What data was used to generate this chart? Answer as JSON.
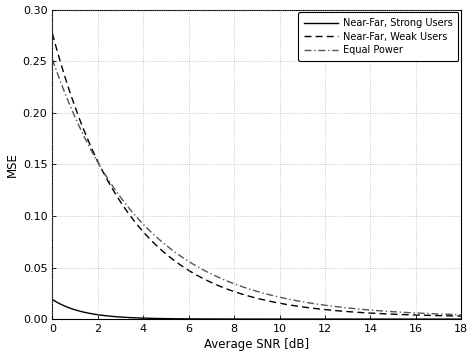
{
  "title": "",
  "xlabel": "Average SNR [dB]",
  "ylabel": "MSE",
  "xlim": [
    0,
    18
  ],
  "ylim": [
    0,
    0.3
  ],
  "yticks": [
    0,
    0.05,
    0.1,
    0.15,
    0.2,
    0.25,
    0.3
  ],
  "xticks": [
    0,
    2,
    4,
    6,
    8,
    10,
    12,
    14,
    16,
    18
  ],
  "legend": [
    {
      "label": "Near-Far, Strong Users",
      "linestyle": "-",
      "color": "#000000",
      "linewidth": 1.0
    },
    {
      "label": "Near-Far, Weak Users",
      "linestyle": "--",
      "color": "#000000",
      "linewidth": 1.0
    },
    {
      "label": "Equal Power",
      "linestyle": "-.",
      "color": "#555555",
      "linewidth": 1.0
    }
  ],
  "background_color": "#ffffff",
  "grid_color": "#aaaaaa",
  "figsize": [
    4.74,
    3.57
  ],
  "dpi": 100,
  "strong_a": 0.019,
  "strong_b": 0.75,
  "strong_c": 0.0003,
  "weak_a": 0.275,
  "weak_b": 0.3,
  "weak_c": 0.002,
  "equal_a": 0.25,
  "equal_b": 0.255,
  "equal_c": 0.002
}
